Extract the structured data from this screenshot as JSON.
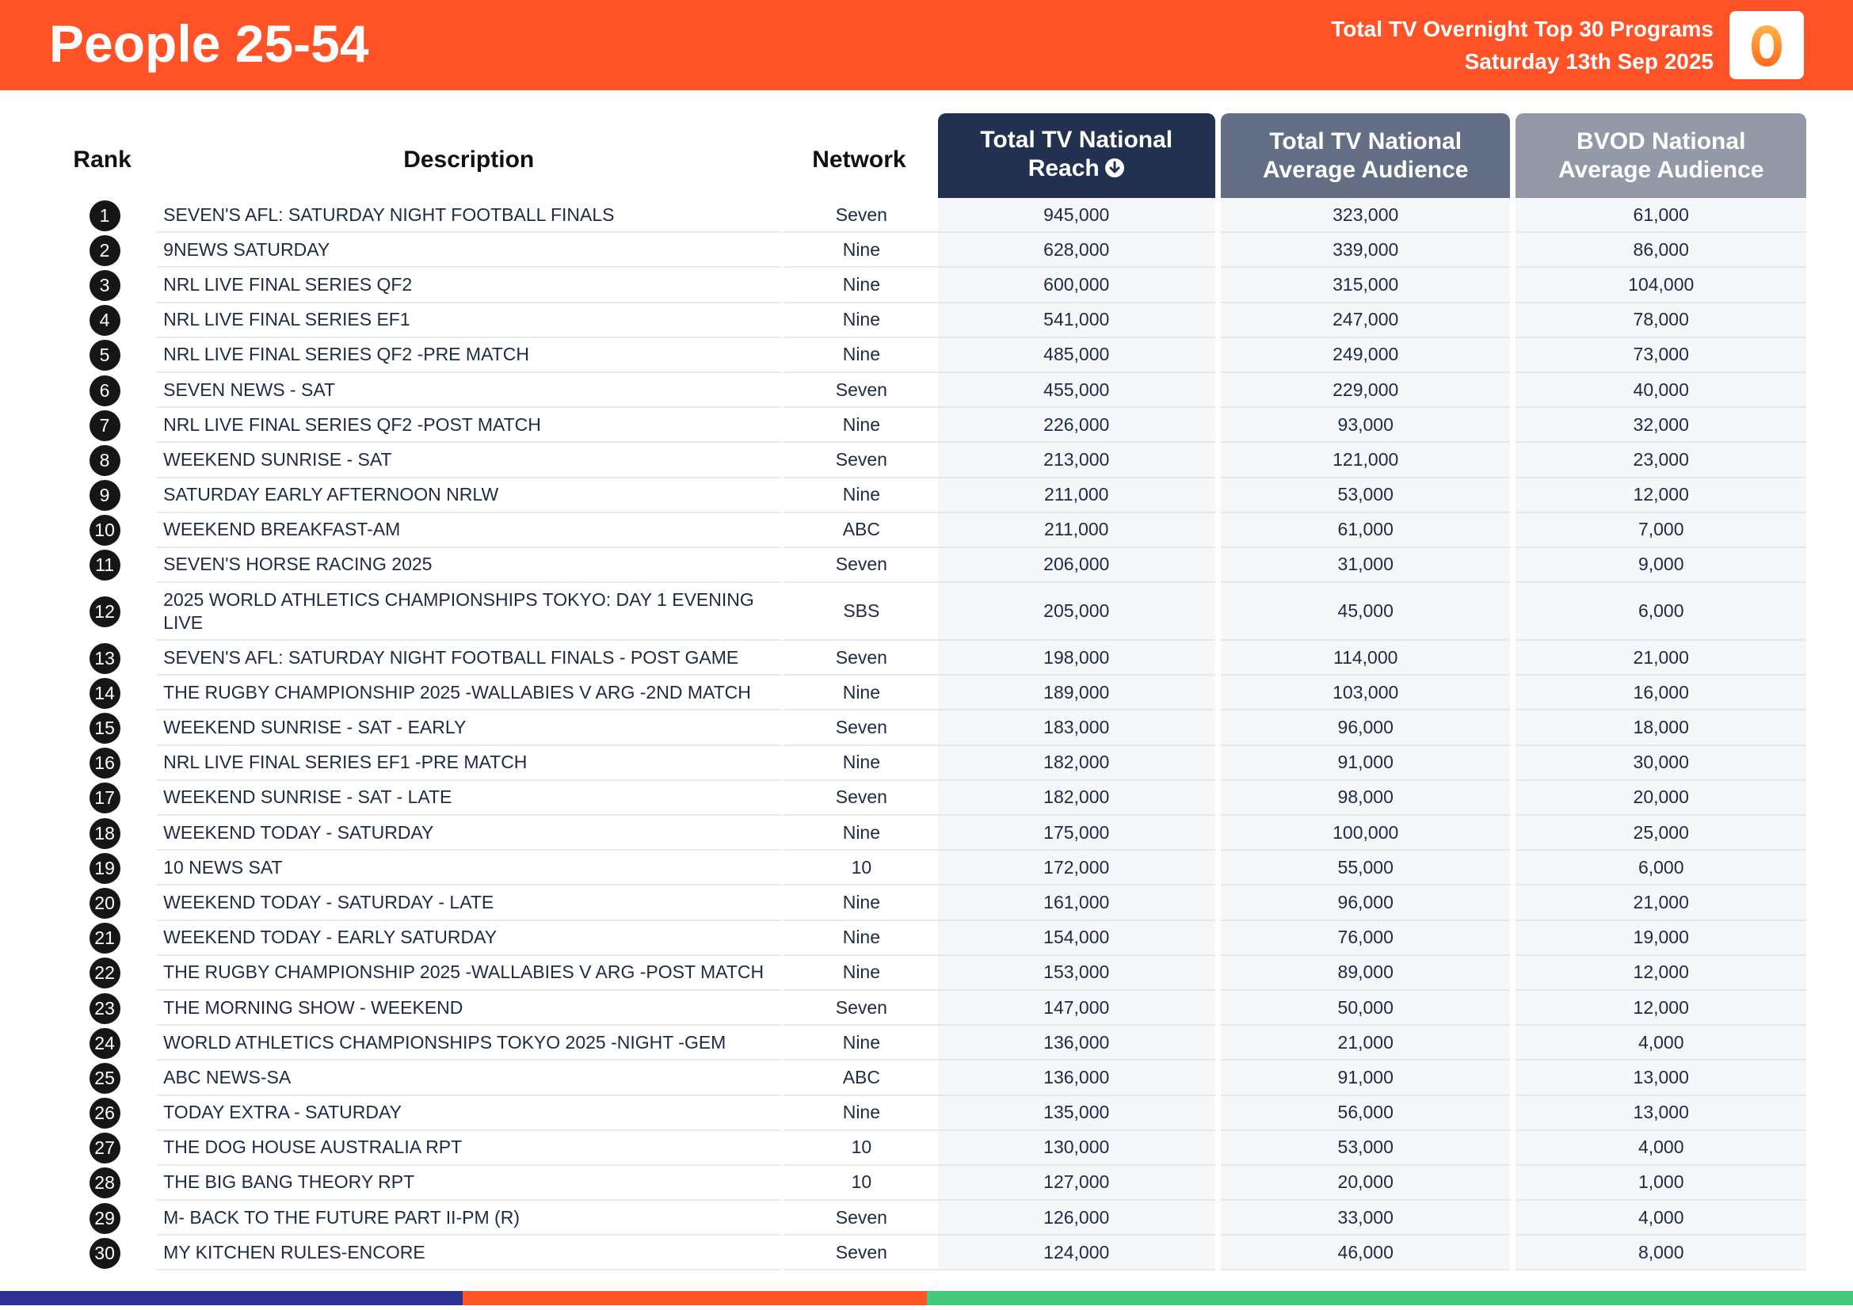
{
  "header": {
    "title": "People 25-54",
    "subtitle_line1": "Total TV Overnight Top 30 Programs",
    "subtitle_line2": "Saturday 13th Sep 2025",
    "logo_glyph": "0",
    "logo_icon": "oztam-zero-logo",
    "accent_color": "#ff5226"
  },
  "table": {
    "columns": {
      "rank": "Rank",
      "description": "Description",
      "network": "Network",
      "reach_line1": "Total TV National",
      "reach_line2": "Reach",
      "avg_line1": "Total TV National",
      "avg_line2": "Average Audience",
      "bvod_line1": "BVOD National",
      "bvod_line2": "Average Audience"
    },
    "sort_icon": "arrow-down-circle-icon",
    "rows": [
      {
        "rank": "1",
        "description": "SEVEN'S AFL: SATURDAY NIGHT FOOTBALL FINALS",
        "network": "Seven",
        "reach": "945,000",
        "avg": "323,000",
        "bvod": "61,000"
      },
      {
        "rank": "2",
        "description": "9NEWS SATURDAY",
        "network": "Nine",
        "reach": "628,000",
        "avg": "339,000",
        "bvod": "86,000"
      },
      {
        "rank": "3",
        "description": "NRL LIVE FINAL SERIES QF2",
        "network": "Nine",
        "reach": "600,000",
        "avg": "315,000",
        "bvod": "104,000"
      },
      {
        "rank": "4",
        "description": "NRL LIVE FINAL SERIES EF1",
        "network": "Nine",
        "reach": "541,000",
        "avg": "247,000",
        "bvod": "78,000"
      },
      {
        "rank": "5",
        "description": "NRL LIVE FINAL SERIES QF2 -PRE MATCH",
        "network": "Nine",
        "reach": "485,000",
        "avg": "249,000",
        "bvod": "73,000"
      },
      {
        "rank": "6",
        "description": "SEVEN NEWS - SAT",
        "network": "Seven",
        "reach": "455,000",
        "avg": "229,000",
        "bvod": "40,000"
      },
      {
        "rank": "7",
        "description": "NRL LIVE FINAL SERIES QF2 -POST MATCH",
        "network": "Nine",
        "reach": "226,000",
        "avg": "93,000",
        "bvod": "32,000"
      },
      {
        "rank": "8",
        "description": "WEEKEND SUNRISE - SAT",
        "network": "Seven",
        "reach": "213,000",
        "avg": "121,000",
        "bvod": "23,000"
      },
      {
        "rank": "9",
        "description": "SATURDAY EARLY AFTERNOON NRLW",
        "network": "Nine",
        "reach": "211,000",
        "avg": "53,000",
        "bvod": "12,000"
      },
      {
        "rank": "10",
        "description": "WEEKEND BREAKFAST-AM",
        "network": "ABC",
        "reach": "211,000",
        "avg": "61,000",
        "bvod": "7,000"
      },
      {
        "rank": "11",
        "description": "SEVEN'S HORSE RACING 2025",
        "network": "Seven",
        "reach": "206,000",
        "avg": "31,000",
        "bvod": "9,000"
      },
      {
        "rank": "12",
        "description": "2025 WORLD ATHLETICS CHAMPIONSHIPS TOKYO: DAY 1 EVENING LIVE",
        "network": "SBS",
        "reach": "205,000",
        "avg": "45,000",
        "bvod": "6,000"
      },
      {
        "rank": "13",
        "description": "SEVEN'S AFL: SATURDAY NIGHT FOOTBALL FINALS - POST GAME",
        "network": "Seven",
        "reach": "198,000",
        "avg": "114,000",
        "bvod": "21,000"
      },
      {
        "rank": "14",
        "description": "THE RUGBY CHAMPIONSHIP 2025 -WALLABIES V ARG -2ND MATCH",
        "network": "Nine",
        "reach": "189,000",
        "avg": "103,000",
        "bvod": "16,000"
      },
      {
        "rank": "15",
        "description": "WEEKEND SUNRISE - SAT - EARLY",
        "network": "Seven",
        "reach": "183,000",
        "avg": "96,000",
        "bvod": "18,000"
      },
      {
        "rank": "16",
        "description": "NRL LIVE FINAL SERIES EF1 -PRE MATCH",
        "network": "Nine",
        "reach": "182,000",
        "avg": "91,000",
        "bvod": "30,000"
      },
      {
        "rank": "17",
        "description": "WEEKEND SUNRISE - SAT - LATE",
        "network": "Seven",
        "reach": "182,000",
        "avg": "98,000",
        "bvod": "20,000"
      },
      {
        "rank": "18",
        "description": "WEEKEND TODAY - SATURDAY",
        "network": "Nine",
        "reach": "175,000",
        "avg": "100,000",
        "bvod": "25,000"
      },
      {
        "rank": "19",
        "description": "10 NEWS SAT",
        "network": "10",
        "reach": "172,000",
        "avg": "55,000",
        "bvod": "6,000"
      },
      {
        "rank": "20",
        "description": "WEEKEND TODAY - SATURDAY - LATE",
        "network": "Nine",
        "reach": "161,000",
        "avg": "96,000",
        "bvod": "21,000"
      },
      {
        "rank": "21",
        "description": "WEEKEND TODAY - EARLY SATURDAY",
        "network": "Nine",
        "reach": "154,000",
        "avg": "76,000",
        "bvod": "19,000"
      },
      {
        "rank": "22",
        "description": "THE RUGBY CHAMPIONSHIP 2025 -WALLABIES V ARG -POST MATCH",
        "network": "Nine",
        "reach": "153,000",
        "avg": "89,000",
        "bvod": "12,000"
      },
      {
        "rank": "23",
        "description": "THE MORNING SHOW - WEEKEND",
        "network": "Seven",
        "reach": "147,000",
        "avg": "50,000",
        "bvod": "12,000"
      },
      {
        "rank": "24",
        "description": "WORLD ATHLETICS CHAMPIONSHIPS TOKYO 2025 -NIGHT -GEM",
        "network": "Nine",
        "reach": "136,000",
        "avg": "21,000",
        "bvod": "4,000"
      },
      {
        "rank": "25",
        "description": "ABC NEWS-SA",
        "network": "ABC",
        "reach": "136,000",
        "avg": "91,000",
        "bvod": "13,000"
      },
      {
        "rank": "26",
        "description": "TODAY EXTRA - SATURDAY",
        "network": "Nine",
        "reach": "135,000",
        "avg": "56,000",
        "bvod": "13,000"
      },
      {
        "rank": "27",
        "description": "THE DOG HOUSE AUSTRALIA RPT",
        "network": "10",
        "reach": "130,000",
        "avg": "53,000",
        "bvod": "4,000"
      },
      {
        "rank": "28",
        "description": "THE BIG BANG THEORY RPT",
        "network": "10",
        "reach": "127,000",
        "avg": "20,000",
        "bvod": "1,000"
      },
      {
        "rank": "29",
        "description": "M- BACK TO THE FUTURE PART II-PM (R)",
        "network": "Seven",
        "reach": "126,000",
        "avg": "33,000",
        "bvod": "4,000"
      },
      {
        "rank": "30",
        "description": "MY KITCHEN RULES-ENCORE",
        "network": "Seven",
        "reach": "124,000",
        "avg": "46,000",
        "bvod": "8,000"
      }
    ]
  },
  "footer_colors": [
    "#2e3192",
    "#ff5226",
    "#45c97f"
  ]
}
